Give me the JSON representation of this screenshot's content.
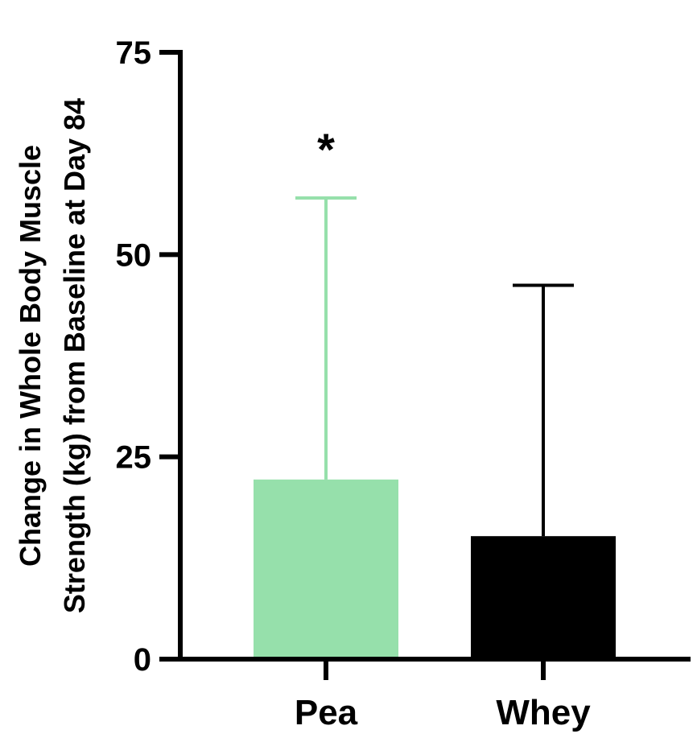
{
  "chart_data": {
    "type": "bar",
    "categories": [
      "Pea",
      "Whey"
    ],
    "values": [
      22.2,
      15.2
    ],
    "error_upper": [
      57.0,
      46.2
    ],
    "colors": [
      "#96e0ab",
      "#000000"
    ],
    "ylabel_lines": [
      "Change in Whole Body Muscle",
      "Strength (kg) from Baseline at Day 84"
    ],
    "ylim": [
      0,
      75
    ],
    "yticks": [
      0,
      25,
      50,
      75
    ],
    "annotations": [
      {
        "category": "Pea",
        "text": "*"
      }
    ],
    "grid": false
  }
}
